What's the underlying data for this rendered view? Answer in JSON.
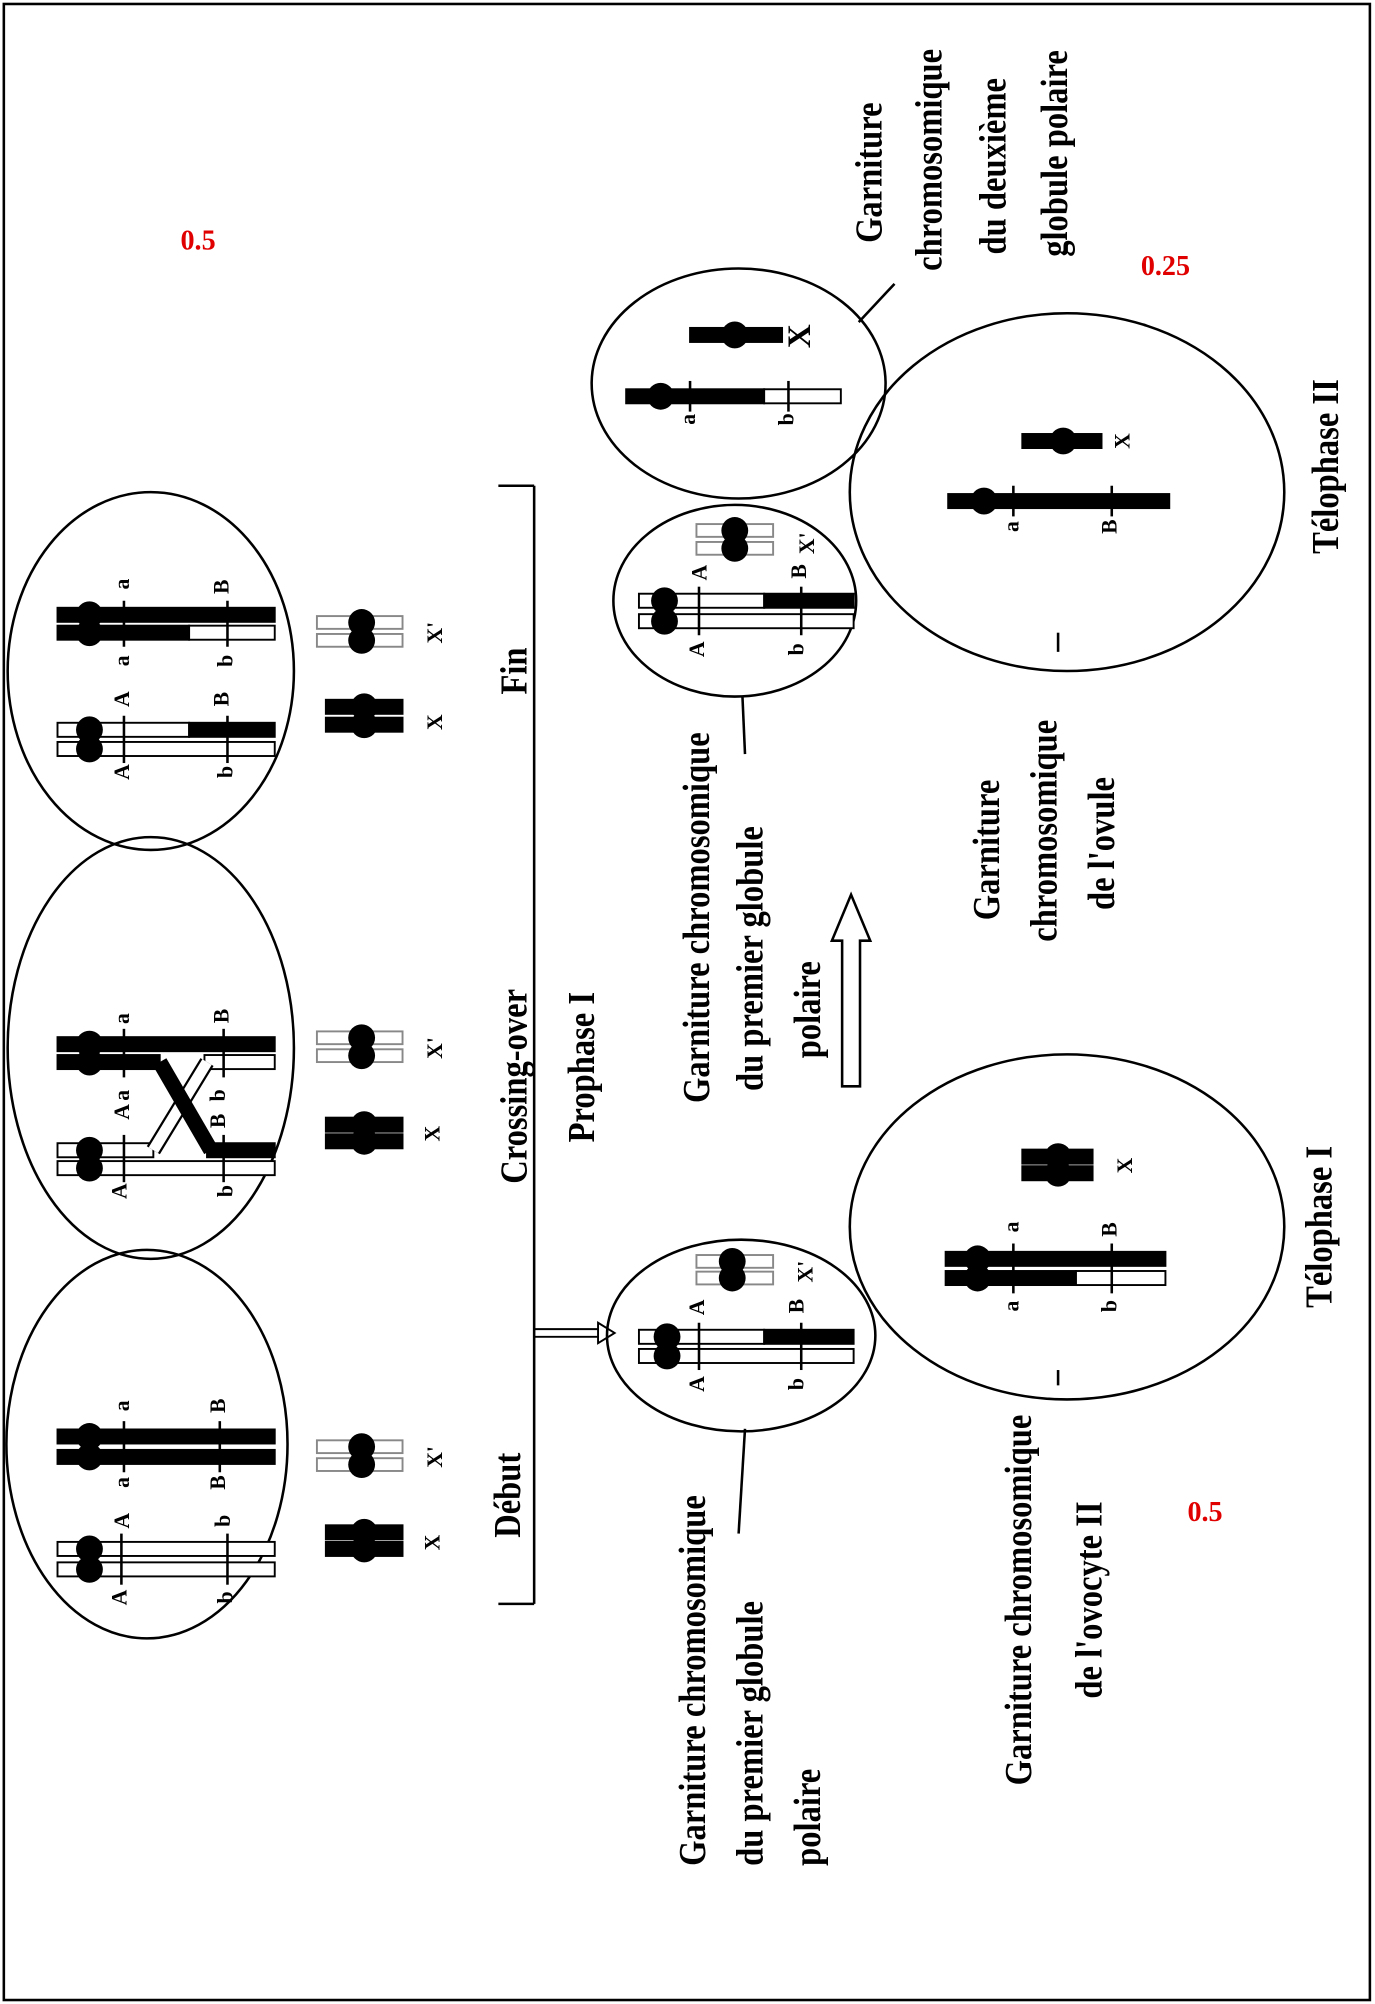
{
  "scores": [
    "0.5",
    "0.25",
    "0.5"
  ],
  "prophase_label": "Prophase I",
  "cells": [
    {
      "stage": "Début",
      "genes": [
        "A",
        "A",
        "b",
        "b",
        "a",
        "a",
        "B",
        "B",
        "X",
        "X'"
      ]
    },
    {
      "stage": "Crossing-over",
      "genes": [
        "A",
        "A",
        "b",
        "a",
        "B",
        "b",
        "a",
        "B",
        "X",
        "X'"
      ]
    },
    {
      "stage": "Fin",
      "genes": [
        "A",
        "b",
        "A",
        "B",
        "a",
        "b",
        "a",
        "B",
        "X",
        "X'"
      ]
    },
    {
      "caption": [
        "Garniture chromosomique",
        "du premier globule",
        "polaire"
      ],
      "genes": [
        "A",
        "b",
        "A",
        "B",
        "X'"
      ]
    },
    {
      "stage": "Télophase I",
      "caption": [
        "Garniture chromosomique",
        "de l'ovocyte II"
      ],
      "genes": [
        "a",
        "b",
        "a",
        "B",
        "X"
      ]
    },
    {
      "caption": [
        "Garniture chromosomique",
        "du premier globule",
        "polaire"
      ],
      "genes": [
        "A",
        "b",
        "A",
        "B",
        "X'"
      ]
    },
    {
      "caption": [
        "Garniture",
        "chromosomique",
        "du deuxième",
        "globule polaire"
      ],
      "genes": [
        "a",
        "b",
        "X"
      ]
    },
    {
      "stage": "Télophase II",
      "caption": [
        "Garniture",
        "chromosomique",
        "de l'ovule"
      ],
      "genes": [
        "a",
        "B",
        "X"
      ]
    }
  ]
}
